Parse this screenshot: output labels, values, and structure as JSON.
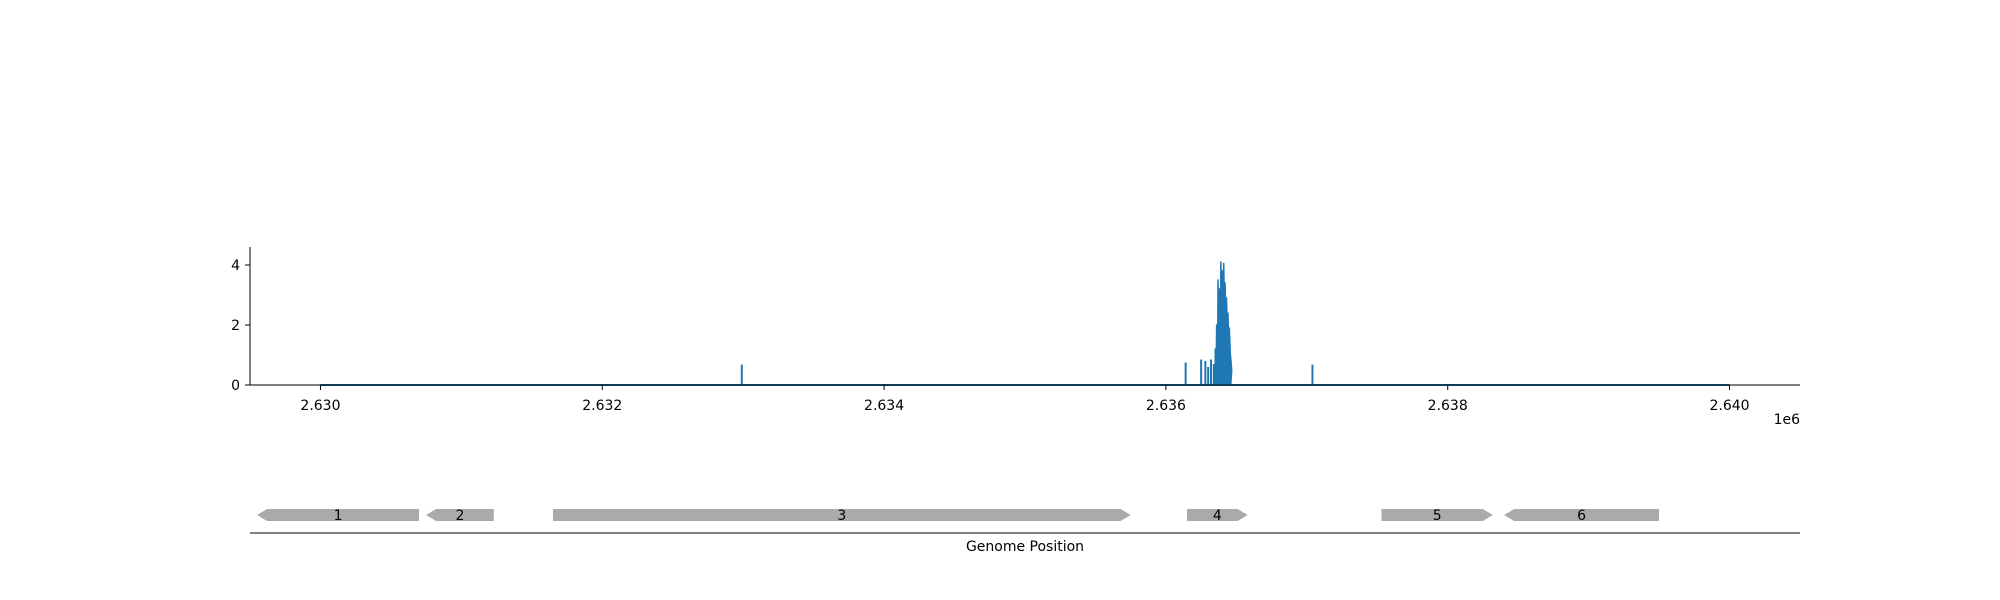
{
  "chart_data": [
    {
      "type": "line",
      "title": "",
      "xlabel": "",
      "ylabel": "",
      "x_offset_label": "1e6",
      "xlim": [
        2629500,
        2640500
      ],
      "ylim": [
        0,
        4.6
      ],
      "x_ticks": [
        {
          "value": 2630000,
          "label": "2.630"
        },
        {
          "value": 2632000,
          "label": "2.632"
        },
        {
          "value": 2634000,
          "label": "2.634"
        },
        {
          "value": 2636000,
          "label": "2.636"
        },
        {
          "value": 2638000,
          "label": "2.638"
        },
        {
          "value": 2640000,
          "label": "2.640"
        }
      ],
      "y_ticks": [
        {
          "value": 0,
          "label": "0"
        },
        {
          "value": 2,
          "label": "2"
        },
        {
          "value": 4,
          "label": "4"
        }
      ],
      "series": [
        {
          "color": "#1f77b4",
          "baseline": {
            "x": [
              2630000,
              2640000
            ],
            "y": 0
          },
          "spikes": [
            {
              "x": 2632990,
              "y": 0.68
            },
            {
              "x": 2636140,
              "y": 0.75
            },
            {
              "x": 2636250,
              "y": 0.85
            },
            {
              "x": 2636280,
              "y": 0.8
            },
            {
              "x": 2636300,
              "y": 0.6
            },
            {
              "x": 2636320,
              "y": 0.85
            },
            {
              "x": 2636340,
              "y": 0.7
            },
            {
              "x": 2637040,
              "y": 0.68
            }
          ],
          "peak": {
            "x": [
              2636350,
              2636360,
              2636370,
              2636380,
              2636390,
              2636400,
              2636410,
              2636420,
              2636430,
              2636440,
              2636450,
              2636460
            ],
            "y": [
              1.2,
              2.0,
              3.5,
              3.2,
              4.1,
              3.8,
              4.05,
              3.4,
              2.9,
              2.4,
              1.9,
              0.9
            ]
          }
        }
      ]
    },
    {
      "type": "gene_track",
      "xlabel": "Genome Position",
      "genes": [
        {
          "label": "1",
          "start": 2629550,
          "end": 2630700,
          "strand": "-"
        },
        {
          "label": "2",
          "start": 2630750,
          "end": 2631230,
          "strand": "-"
        },
        {
          "label": "3",
          "start": 2631650,
          "end": 2635750,
          "strand": "+"
        },
        {
          "label": "4",
          "start": 2636150,
          "end": 2636580,
          "strand": "+"
        },
        {
          "label": "5",
          "start": 2637530,
          "end": 2638320,
          "strand": "+"
        },
        {
          "label": "6",
          "start": 2638400,
          "end": 2639500,
          "strand": "-"
        }
      ],
      "color": "#aaaaaa"
    }
  ]
}
